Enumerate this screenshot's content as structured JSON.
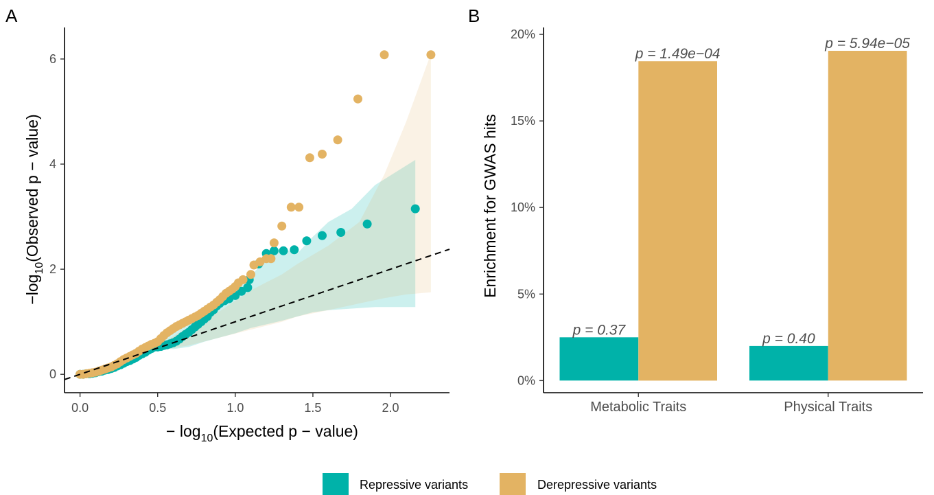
{
  "panels": {
    "a_label": "A",
    "b_label": "B"
  },
  "chart_data": [
    {
      "type": "scatter",
      "panel": "A",
      "xlabel": "−log₁₀(Expected p − value)",
      "ylabel": "−log₁₀(Observed p − value)",
      "xlabel_parts": {
        "prefix": "− log",
        "sub": "10",
        "rest": "(Expected p − value)"
      },
      "ylabel_parts": {
        "prefix": "−log",
        "sub": "10",
        "rest": "(Observed p − value)"
      },
      "xlim": [
        -0.1,
        2.38
      ],
      "ylim": [
        -0.35,
        6.6
      ],
      "xticks": [
        0.0,
        0.5,
        1.0,
        1.5,
        2.0
      ],
      "xtick_labels": [
        "0.0",
        "0.5",
        "1.0",
        "1.5",
        "2.0"
      ],
      "yticks": [
        0,
        2,
        4,
        6
      ],
      "ytick_labels": [
        "0",
        "2",
        "4",
        "6"
      ],
      "reference_line": {
        "style": "dashed",
        "slope": 1,
        "intercept": 0
      },
      "series": [
        {
          "name": "Repressive variants",
          "color": "#00b2a9",
          "points": [
            [
              0.0,
              0.0
            ],
            [
              0.02,
              0.0
            ],
            [
              0.04,
              0.01
            ],
            [
              0.06,
              0.01
            ],
            [
              0.08,
              0.02
            ],
            [
              0.1,
              0.03
            ],
            [
              0.12,
              0.05
            ],
            [
              0.14,
              0.06
            ],
            [
              0.16,
              0.08
            ],
            [
              0.18,
              0.09
            ],
            [
              0.2,
              0.11
            ],
            [
              0.22,
              0.13
            ],
            [
              0.24,
              0.16
            ],
            [
              0.26,
              0.18
            ],
            [
              0.28,
              0.21
            ],
            [
              0.3,
              0.24
            ],
            [
              0.32,
              0.26
            ],
            [
              0.34,
              0.29
            ],
            [
              0.36,
              0.32
            ],
            [
              0.38,
              0.36
            ],
            [
              0.4,
              0.39
            ],
            [
              0.42,
              0.42
            ],
            [
              0.44,
              0.46
            ],
            [
              0.46,
              0.49
            ],
            [
              0.48,
              0.52
            ],
            [
              0.5,
              0.52
            ],
            [
              0.52,
              0.53
            ],
            [
              0.54,
              0.55
            ],
            [
              0.56,
              0.56
            ],
            [
              0.58,
              0.58
            ],
            [
              0.6,
              0.6
            ],
            [
              0.62,
              0.63
            ],
            [
              0.64,
              0.67
            ],
            [
              0.66,
              0.72
            ],
            [
              0.68,
              0.76
            ],
            [
              0.7,
              0.8
            ],
            [
              0.72,
              0.85
            ],
            [
              0.74,
              0.9
            ],
            [
              0.76,
              0.95
            ],
            [
              0.78,
              1.0
            ],
            [
              0.8,
              1.05
            ],
            [
              0.82,
              1.1
            ],
            [
              0.84,
              1.18
            ],
            [
              0.86,
              1.23
            ],
            [
              0.88,
              1.3
            ],
            [
              0.9,
              1.35
            ],
            [
              0.93,
              1.4
            ],
            [
              0.96,
              1.44
            ],
            [
              1.0,
              1.5
            ],
            [
              1.04,
              1.58
            ],
            [
              1.08,
              1.65
            ],
            [
              1.09,
              1.8
            ],
            [
              1.15,
              2.1
            ],
            [
              1.2,
              2.3
            ],
            [
              1.25,
              2.35
            ],
            [
              1.31,
              2.35
            ],
            [
              1.38,
              2.37
            ],
            [
              1.46,
              2.54
            ],
            [
              1.56,
              2.64
            ],
            [
              1.68,
              2.7
            ],
            [
              1.85,
              2.86
            ],
            [
              2.16,
              3.15
            ]
          ],
          "ci_band": [
            [
              0.5,
              0.5,
              0.6
            ],
            [
              0.6,
              0.48,
              0.8
            ],
            [
              0.7,
              0.52,
              1.0
            ],
            [
              0.8,
              0.62,
              1.2
            ],
            [
              0.9,
              0.7,
              1.4
            ],
            [
              1.0,
              0.78,
              1.68
            ],
            [
              1.1,
              0.88,
              1.88
            ],
            [
              1.2,
              0.95,
              2.18
            ],
            [
              1.3,
              1.02,
              2.4
            ],
            [
              1.4,
              1.1,
              2.3
            ],
            [
              1.5,
              1.18,
              2.62
            ],
            [
              1.6,
              1.22,
              2.9
            ],
            [
              1.75,
              1.25,
              3.15
            ],
            [
              1.9,
              1.28,
              3.6
            ],
            [
              2.16,
              1.28,
              4.08
            ]
          ]
        },
        {
          "name": "Derepressive variants",
          "color": "#e3b363",
          "points": [
            [
              0.0,
              0.0
            ],
            [
              0.02,
              0.0
            ],
            [
              0.04,
              0.01
            ],
            [
              0.06,
              0.02
            ],
            [
              0.08,
              0.03
            ],
            [
              0.1,
              0.04
            ],
            [
              0.12,
              0.06
            ],
            [
              0.14,
              0.08
            ],
            [
              0.16,
              0.1
            ],
            [
              0.18,
              0.12
            ],
            [
              0.2,
              0.14
            ],
            [
              0.22,
              0.17
            ],
            [
              0.24,
              0.2
            ],
            [
              0.26,
              0.24
            ],
            [
              0.28,
              0.28
            ],
            [
              0.3,
              0.31
            ],
            [
              0.32,
              0.34
            ],
            [
              0.34,
              0.37
            ],
            [
              0.36,
              0.4
            ],
            [
              0.38,
              0.44
            ],
            [
              0.4,
              0.48
            ],
            [
              0.42,
              0.51
            ],
            [
              0.44,
              0.54
            ],
            [
              0.46,
              0.57
            ],
            [
              0.48,
              0.59
            ],
            [
              0.5,
              0.62
            ],
            [
              0.52,
              0.68
            ],
            [
              0.54,
              0.74
            ],
            [
              0.56,
              0.79
            ],
            [
              0.58,
              0.83
            ],
            [
              0.6,
              0.87
            ],
            [
              0.62,
              0.91
            ],
            [
              0.64,
              0.94
            ],
            [
              0.66,
              0.97
            ],
            [
              0.68,
              1.0
            ],
            [
              0.7,
              1.03
            ],
            [
              0.72,
              1.06
            ],
            [
              0.74,
              1.09
            ],
            [
              0.76,
              1.12
            ],
            [
              0.78,
              1.16
            ],
            [
              0.8,
              1.2
            ],
            [
              0.82,
              1.24
            ],
            [
              0.84,
              1.28
            ],
            [
              0.86,
              1.32
            ],
            [
              0.88,
              1.37
            ],
            [
              0.9,
              1.42
            ],
            [
              0.92,
              1.48
            ],
            [
              0.94,
              1.54
            ],
            [
              0.96,
              1.58
            ],
            [
              0.98,
              1.62
            ],
            [
              1.0,
              1.67
            ],
            [
              1.02,
              1.74
            ],
            [
              1.05,
              1.8
            ],
            [
              1.1,
              1.9
            ],
            [
              1.12,
              2.08
            ],
            [
              1.16,
              2.14
            ],
            [
              1.2,
              2.2
            ],
            [
              1.23,
              2.2
            ],
            [
              1.25,
              2.5
            ],
            [
              1.3,
              2.82
            ],
            [
              1.36,
              3.18
            ],
            [
              1.41,
              3.18
            ],
            [
              1.48,
              4.12
            ],
            [
              1.56,
              4.19
            ],
            [
              1.66,
              4.46
            ],
            [
              1.79,
              5.24
            ],
            [
              1.96,
              6.08
            ],
            [
              2.26,
              6.08
            ]
          ],
          "ci_band": [
            [
              0.5,
              0.45,
              0.55
            ],
            [
              0.7,
              0.55,
              0.9
            ],
            [
              0.9,
              0.7,
              1.2
            ],
            [
              1.1,
              0.85,
              1.6
            ],
            [
              1.3,
              1.0,
              1.9
            ],
            [
              1.4,
              1.1,
              2.1
            ],
            [
              1.6,
              1.22,
              2.45
            ],
            [
              1.8,
              1.35,
              2.9
            ],
            [
              1.96,
              1.45,
              3.8
            ],
            [
              2.1,
              1.52,
              4.8
            ],
            [
              2.26,
              1.56,
              6.1
            ]
          ]
        }
      ]
    },
    {
      "type": "bar",
      "panel": "B",
      "categories": [
        "Metabolic Traits",
        "Physical Traits"
      ],
      "ylabel": "Enrichment for GWAS hits",
      "ylim": [
        -0.7,
        20.4
      ],
      "yticks": [
        0,
        5,
        10,
        15,
        20
      ],
      "ytick_labels": [
        "0%",
        "5%",
        "10%",
        "15%",
        "20%"
      ],
      "series": [
        {
          "name": "Repressive variants",
          "color": "#00b2a9",
          "values": [
            2.5,
            2.0
          ],
          "labels": [
            "p = 0.37",
            "p = 0.40"
          ]
        },
        {
          "name": "Derepressive variants",
          "color": "#e3b363",
          "values": [
            18.45,
            19.05
          ],
          "labels": [
            "p = 1.49e−04",
            "p = 5.94e−05"
          ]
        }
      ]
    }
  ],
  "legend": {
    "items": [
      {
        "name": "Repressive variants",
        "color": "#00b2a9"
      },
      {
        "name": "Derepressive variants",
        "color": "#e3b363"
      }
    ]
  }
}
